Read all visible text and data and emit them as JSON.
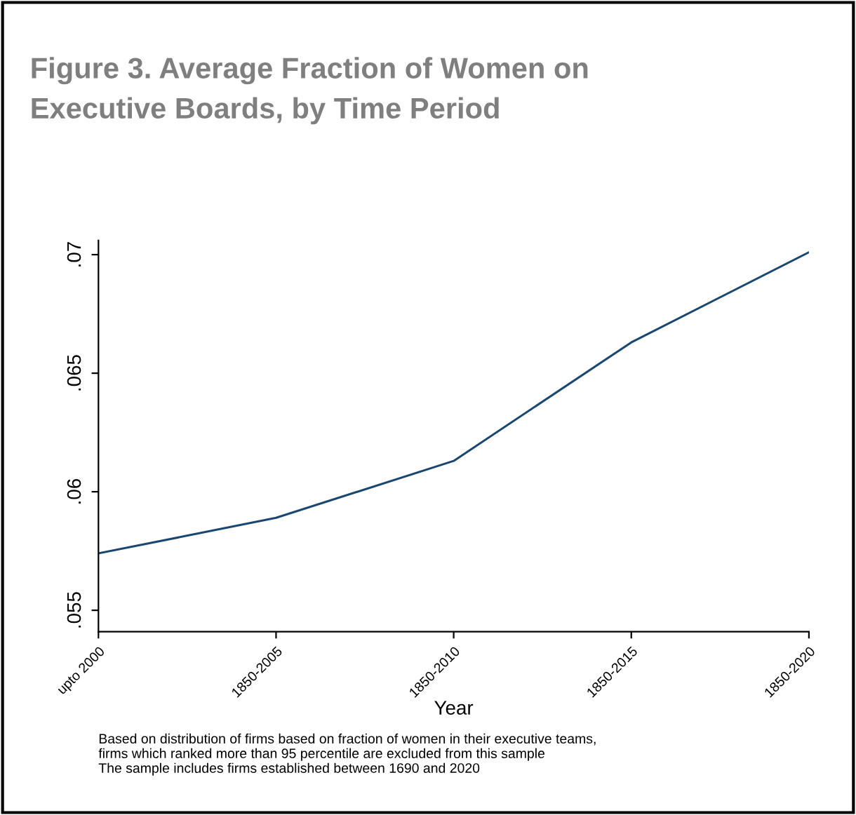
{
  "chart_data": {
    "type": "line",
    "title": "Figure 3. Average Fraction of Women on\nExecutive Boards, by Time Period",
    "categories": [
      "upto 2000",
      "1850-2005",
      "1850-2010",
      "1850-2015",
      "1850-2020"
    ],
    "series": [
      {
        "color": "#1a476f",
        "values": [
          0.0574,
          0.0589,
          0.0613,
          0.0663,
          0.0701
        ]
      }
    ],
    "xlabel": "Year",
    "ylim": [
      0.0541,
      0.0706
    ],
    "yticks": [
      {
        "value": 0.055,
        "label": ".055"
      },
      {
        "value": 0.06,
        "label": ".06"
      },
      {
        "value": 0.065,
        "label": ".065"
      },
      {
        "value": 0.07,
        "label": ".07"
      }
    ],
    "grid": false,
    "legend": false,
    "marker": "none",
    "line_style": "solid",
    "annotations": [
      "Based on distribution of firms based on fraction of women in their executive teams,\nfirms which ranked more than 95 percentile are excluded from this sample\nThe sample includes firms established between 1690 and 2020"
    ]
  }
}
